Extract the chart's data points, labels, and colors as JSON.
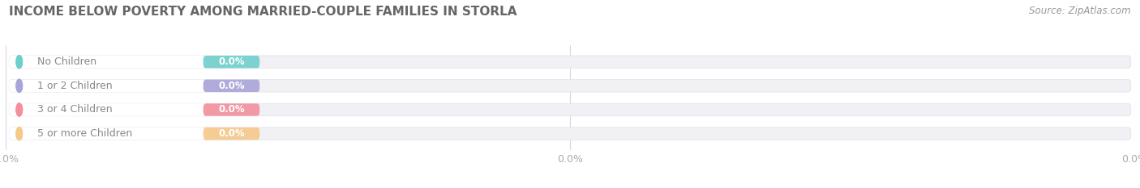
{
  "title": "INCOME BELOW POVERTY AMONG MARRIED-COUPLE FAMILIES IN STORLA",
  "source": "Source: ZipAtlas.com",
  "categories": [
    "No Children",
    "1 or 2 Children",
    "3 or 4 Children",
    "5 or more Children"
  ],
  "values": [
    0.0,
    0.0,
    0.0,
    0.0
  ],
  "bar_colors": [
    "#6ecfca",
    "#a8a4d8",
    "#f4909c",
    "#f5c98a"
  ],
  "bar_bg_color": "#f0f0f5",
  "value_text": "0.0%",
  "background_color": "#ffffff",
  "title_fontsize": 11,
  "source_fontsize": 8.5,
  "label_fontsize": 9,
  "value_fontsize": 8.5,
  "bar_height": 0.52,
  "label_color": "#888888",
  "value_color": "#ffffff",
  "tick_color": "#aaaaaa",
  "tick_fontsize": 9,
  "tick_label": "0.0%"
}
